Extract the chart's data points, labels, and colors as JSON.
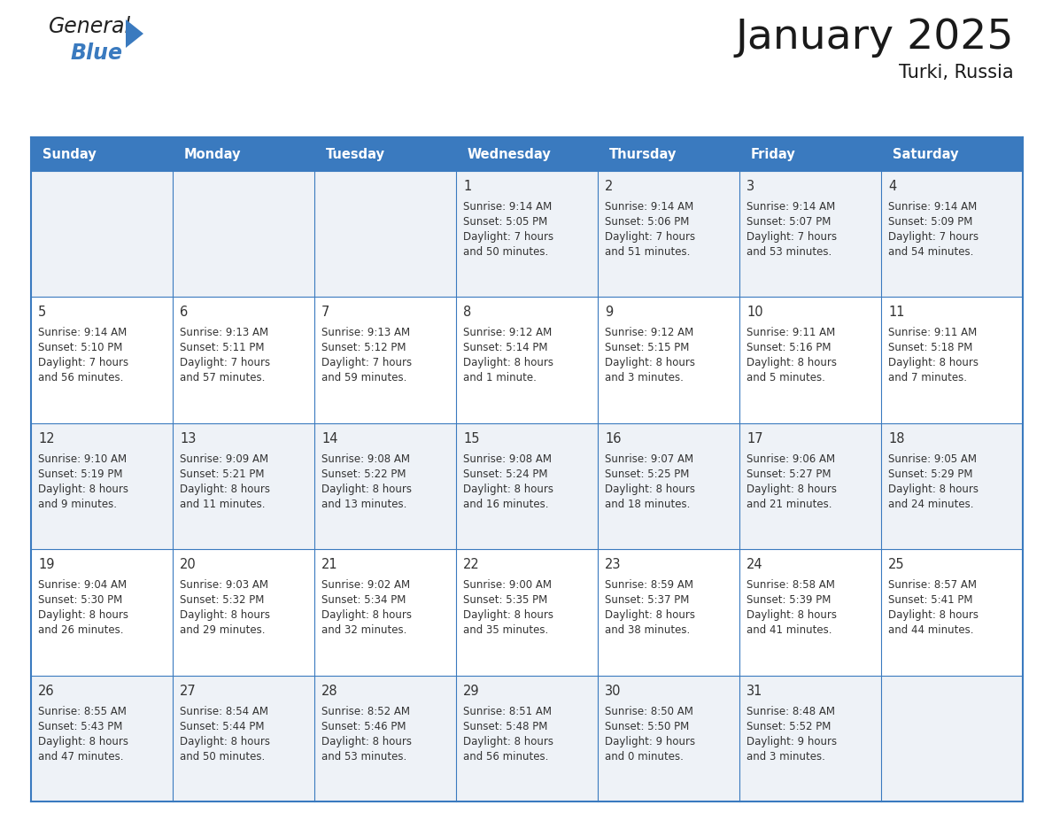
{
  "title": "January 2025",
  "subtitle": "Turki, Russia",
  "days_of_week": [
    "Sunday",
    "Monday",
    "Tuesday",
    "Wednesday",
    "Thursday",
    "Friday",
    "Saturday"
  ],
  "header_bg": "#3a7abf",
  "header_text": "#ffffff",
  "row_bg_odd": "#eef2f7",
  "row_bg_even": "#ffffff",
  "border_color": "#3a7abf",
  "text_color": "#333333",
  "calendar_data": [
    [
      null,
      null,
      null,
      {
        "day": "1",
        "sunrise": "9:14 AM",
        "sunset": "5:05 PM",
        "daylight": "7 hours",
        "daylight2": "and 50 minutes."
      },
      {
        "day": "2",
        "sunrise": "9:14 AM",
        "sunset": "5:06 PM",
        "daylight": "7 hours",
        "daylight2": "and 51 minutes."
      },
      {
        "day": "3",
        "sunrise": "9:14 AM",
        "sunset": "5:07 PM",
        "daylight": "7 hours",
        "daylight2": "and 53 minutes."
      },
      {
        "day": "4",
        "sunrise": "9:14 AM",
        "sunset": "5:09 PM",
        "daylight": "7 hours",
        "daylight2": "and 54 minutes."
      }
    ],
    [
      {
        "day": "5",
        "sunrise": "9:14 AM",
        "sunset": "5:10 PM",
        "daylight": "7 hours",
        "daylight2": "and 56 minutes."
      },
      {
        "day": "6",
        "sunrise": "9:13 AM",
        "sunset": "5:11 PM",
        "daylight": "7 hours",
        "daylight2": "and 57 minutes."
      },
      {
        "day": "7",
        "sunrise": "9:13 AM",
        "sunset": "5:12 PM",
        "daylight": "7 hours",
        "daylight2": "and 59 minutes."
      },
      {
        "day": "8",
        "sunrise": "9:12 AM",
        "sunset": "5:14 PM",
        "daylight": "8 hours",
        "daylight2": "and 1 minute."
      },
      {
        "day": "9",
        "sunrise": "9:12 AM",
        "sunset": "5:15 PM",
        "daylight": "8 hours",
        "daylight2": "and 3 minutes."
      },
      {
        "day": "10",
        "sunrise": "9:11 AM",
        "sunset": "5:16 PM",
        "daylight": "8 hours",
        "daylight2": "and 5 minutes."
      },
      {
        "day": "11",
        "sunrise": "9:11 AM",
        "sunset": "5:18 PM",
        "daylight": "8 hours",
        "daylight2": "and 7 minutes."
      }
    ],
    [
      {
        "day": "12",
        "sunrise": "9:10 AM",
        "sunset": "5:19 PM",
        "daylight": "8 hours",
        "daylight2": "and 9 minutes."
      },
      {
        "day": "13",
        "sunrise": "9:09 AM",
        "sunset": "5:21 PM",
        "daylight": "8 hours",
        "daylight2": "and 11 minutes."
      },
      {
        "day": "14",
        "sunrise": "9:08 AM",
        "sunset": "5:22 PM",
        "daylight": "8 hours",
        "daylight2": "and 13 minutes."
      },
      {
        "day": "15",
        "sunrise": "9:08 AM",
        "sunset": "5:24 PM",
        "daylight": "8 hours",
        "daylight2": "and 16 minutes."
      },
      {
        "day": "16",
        "sunrise": "9:07 AM",
        "sunset": "5:25 PM",
        "daylight": "8 hours",
        "daylight2": "and 18 minutes."
      },
      {
        "day": "17",
        "sunrise": "9:06 AM",
        "sunset": "5:27 PM",
        "daylight": "8 hours",
        "daylight2": "and 21 minutes."
      },
      {
        "day": "18",
        "sunrise": "9:05 AM",
        "sunset": "5:29 PM",
        "daylight": "8 hours",
        "daylight2": "and 24 minutes."
      }
    ],
    [
      {
        "day": "19",
        "sunrise": "9:04 AM",
        "sunset": "5:30 PM",
        "daylight": "8 hours",
        "daylight2": "and 26 minutes."
      },
      {
        "day": "20",
        "sunrise": "9:03 AM",
        "sunset": "5:32 PM",
        "daylight": "8 hours",
        "daylight2": "and 29 minutes."
      },
      {
        "day": "21",
        "sunrise": "9:02 AM",
        "sunset": "5:34 PM",
        "daylight": "8 hours",
        "daylight2": "and 32 minutes."
      },
      {
        "day": "22",
        "sunrise": "9:00 AM",
        "sunset": "5:35 PM",
        "daylight": "8 hours",
        "daylight2": "and 35 minutes."
      },
      {
        "day": "23",
        "sunrise": "8:59 AM",
        "sunset": "5:37 PM",
        "daylight": "8 hours",
        "daylight2": "and 38 minutes."
      },
      {
        "day": "24",
        "sunrise": "8:58 AM",
        "sunset": "5:39 PM",
        "daylight": "8 hours",
        "daylight2": "and 41 minutes."
      },
      {
        "day": "25",
        "sunrise": "8:57 AM",
        "sunset": "5:41 PM",
        "daylight": "8 hours",
        "daylight2": "and 44 minutes."
      }
    ],
    [
      {
        "day": "26",
        "sunrise": "8:55 AM",
        "sunset": "5:43 PM",
        "daylight": "8 hours",
        "daylight2": "and 47 minutes."
      },
      {
        "day": "27",
        "sunrise": "8:54 AM",
        "sunset": "5:44 PM",
        "daylight": "8 hours",
        "daylight2": "and 50 minutes."
      },
      {
        "day": "28",
        "sunrise": "8:52 AM",
        "sunset": "5:46 PM",
        "daylight": "8 hours",
        "daylight2": "and 53 minutes."
      },
      {
        "day": "29",
        "sunrise": "8:51 AM",
        "sunset": "5:48 PM",
        "daylight": "8 hours",
        "daylight2": "and 56 minutes."
      },
      {
        "day": "30",
        "sunrise": "8:50 AM",
        "sunset": "5:50 PM",
        "daylight": "9 hours",
        "daylight2": "and 0 minutes."
      },
      {
        "day": "31",
        "sunrise": "8:48 AM",
        "sunset": "5:52 PM",
        "daylight": "9 hours",
        "daylight2": "and 3 minutes."
      },
      null
    ]
  ],
  "logo_general_color": "#222222",
  "logo_blue_color": "#3a7abf",
  "logo_triangle_color": "#3a7abf"
}
